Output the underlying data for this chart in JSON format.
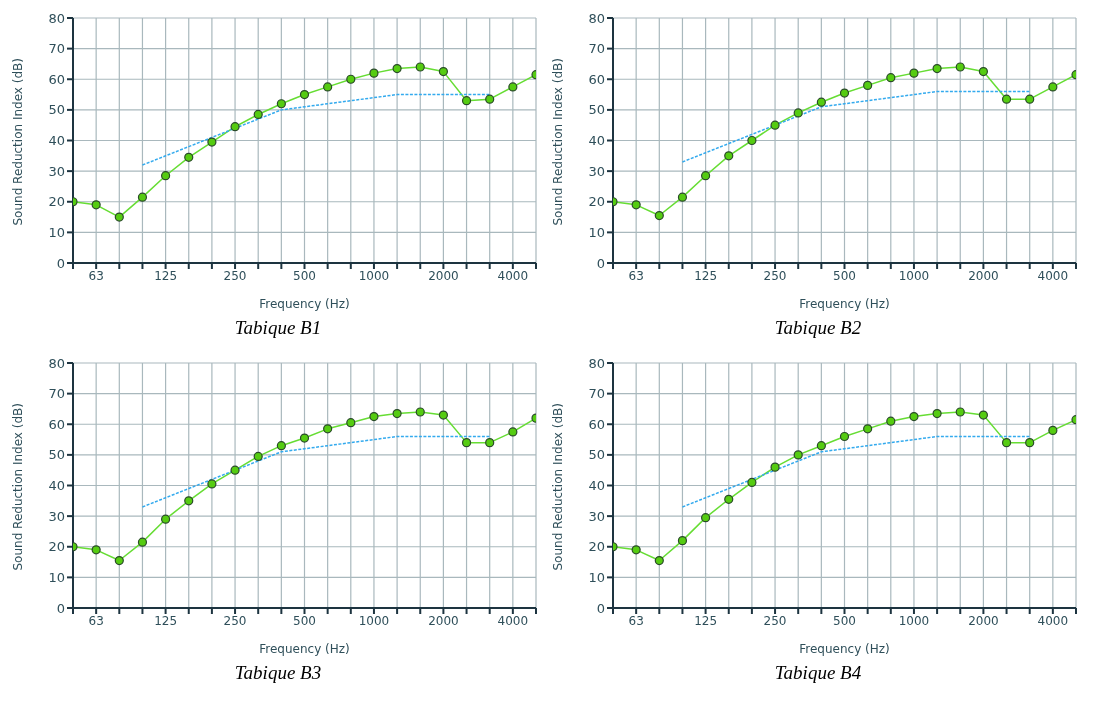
{
  "chart_data": [
    {
      "type": "line",
      "title": "Tabique B1",
      "xlabel": "Frequency (Hz)",
      "ylabel": "Sound Reduction Index (dB)",
      "categories": [
        null,
        "63",
        null,
        null,
        "125",
        null,
        null,
        "250",
        null,
        null,
        "500",
        null,
        null,
        "1000",
        null,
        null,
        "2000",
        null,
        null,
        "4000",
        null
      ],
      "ylim": [
        0,
        80
      ],
      "yticks": [
        0,
        10,
        20,
        30,
        40,
        50,
        60,
        70,
        80
      ],
      "grid": true,
      "series": [
        {
          "color": "#66dd33",
          "marker": "circle",
          "line_style": "solid",
          "values": [
            20,
            19,
            15,
            21.5,
            28.5,
            34.5,
            39.5,
            44.5,
            48.5,
            52,
            55,
            57.5,
            60,
            62,
            63.5,
            64,
            62.5,
            53,
            53.5,
            57.5,
            61.5
          ]
        },
        {
          "color": "#33aaee",
          "marker": "none",
          "line_style": "dashed",
          "values": [
            null,
            null,
            null,
            32,
            35,
            38,
            41,
            44,
            47,
            50,
            51,
            52,
            53,
            54,
            55,
            55,
            55,
            55,
            55,
            null,
            null
          ]
        }
      ]
    },
    {
      "type": "line",
      "title": "Tabique B2",
      "xlabel": "Frequency (Hz)",
      "ylabel": "Sound Reduction Index (dB)",
      "categories": [
        null,
        "63",
        null,
        null,
        "125",
        null,
        null,
        "250",
        null,
        null,
        "500",
        null,
        null,
        "1000",
        null,
        null,
        "2000",
        null,
        null,
        "4000",
        null
      ],
      "ylim": [
        0,
        80
      ],
      "yticks": [
        0,
        10,
        20,
        30,
        40,
        50,
        60,
        70,
        80
      ],
      "grid": true,
      "series": [
        {
          "color": "#66dd33",
          "marker": "circle",
          "line_style": "solid",
          "values": [
            20,
            19,
            15.5,
            21.5,
            28.5,
            35,
            40,
            45,
            49,
            52.5,
            55.5,
            58,
            60.5,
            62,
            63.5,
            64,
            62.5,
            53.5,
            53.5,
            57.5,
            61.5
          ]
        },
        {
          "color": "#33aaee",
          "marker": "none",
          "line_style": "dashed",
          "values": [
            null,
            null,
            null,
            33,
            36,
            39,
            42,
            45,
            48,
            51,
            52,
            53,
            54,
            55,
            56,
            56,
            56,
            56,
            56,
            null,
            null
          ]
        }
      ]
    },
    {
      "type": "line",
      "title": "Tabique B3",
      "xlabel": "Frequency (Hz)",
      "ylabel": "Sound Reduction Index (dB)",
      "categories": [
        null,
        "63",
        null,
        null,
        "125",
        null,
        null,
        "250",
        null,
        null,
        "500",
        null,
        null,
        "1000",
        null,
        null,
        "2000",
        null,
        null,
        "4000",
        null
      ],
      "ylim": [
        0,
        80
      ],
      "yticks": [
        0,
        10,
        20,
        30,
        40,
        50,
        60,
        70,
        80
      ],
      "grid": true,
      "series": [
        {
          "color": "#66dd33",
          "marker": "circle",
          "line_style": "solid",
          "values": [
            20,
            19,
            15.5,
            21.5,
            29,
            35,
            40.5,
            45,
            49.5,
            53,
            55.5,
            58.5,
            60.5,
            62.5,
            63.5,
            64,
            63,
            54,
            54,
            57.5,
            62
          ]
        },
        {
          "color": "#33aaee",
          "marker": "none",
          "line_style": "dashed",
          "values": [
            null,
            null,
            null,
            33,
            36,
            39,
            42,
            45,
            48,
            51,
            52,
            53,
            54,
            55,
            56,
            56,
            56,
            56,
            56,
            null,
            null
          ]
        }
      ]
    },
    {
      "type": "line",
      "title": "Tabique B4",
      "xlabel": "Frequency (Hz)",
      "ylabel": "Sound Reduction Index (dB)",
      "categories": [
        null,
        "63",
        null,
        null,
        "125",
        null,
        null,
        "250",
        null,
        null,
        "500",
        null,
        null,
        "1000",
        null,
        null,
        "2000",
        null,
        null,
        "4000",
        null
      ],
      "ylim": [
        0,
        80
      ],
      "yticks": [
        0,
        10,
        20,
        30,
        40,
        50,
        60,
        70,
        80
      ],
      "grid": true,
      "series": [
        {
          "color": "#66dd33",
          "marker": "circle",
          "line_style": "solid",
          "values": [
            20,
            19,
            15.5,
            22,
            29.5,
            35.5,
            41,
            46,
            50,
            53,
            56,
            58.5,
            61,
            62.5,
            63.5,
            64,
            63,
            54,
            54,
            58,
            61.5
          ]
        },
        {
          "color": "#33aaee",
          "marker": "none",
          "line_style": "dashed",
          "values": [
            null,
            null,
            null,
            33,
            36,
            39,
            42,
            45,
            48,
            51,
            52,
            53,
            54,
            55,
            56,
            56,
            56,
            56,
            56,
            null,
            null
          ]
        }
      ]
    }
  ]
}
